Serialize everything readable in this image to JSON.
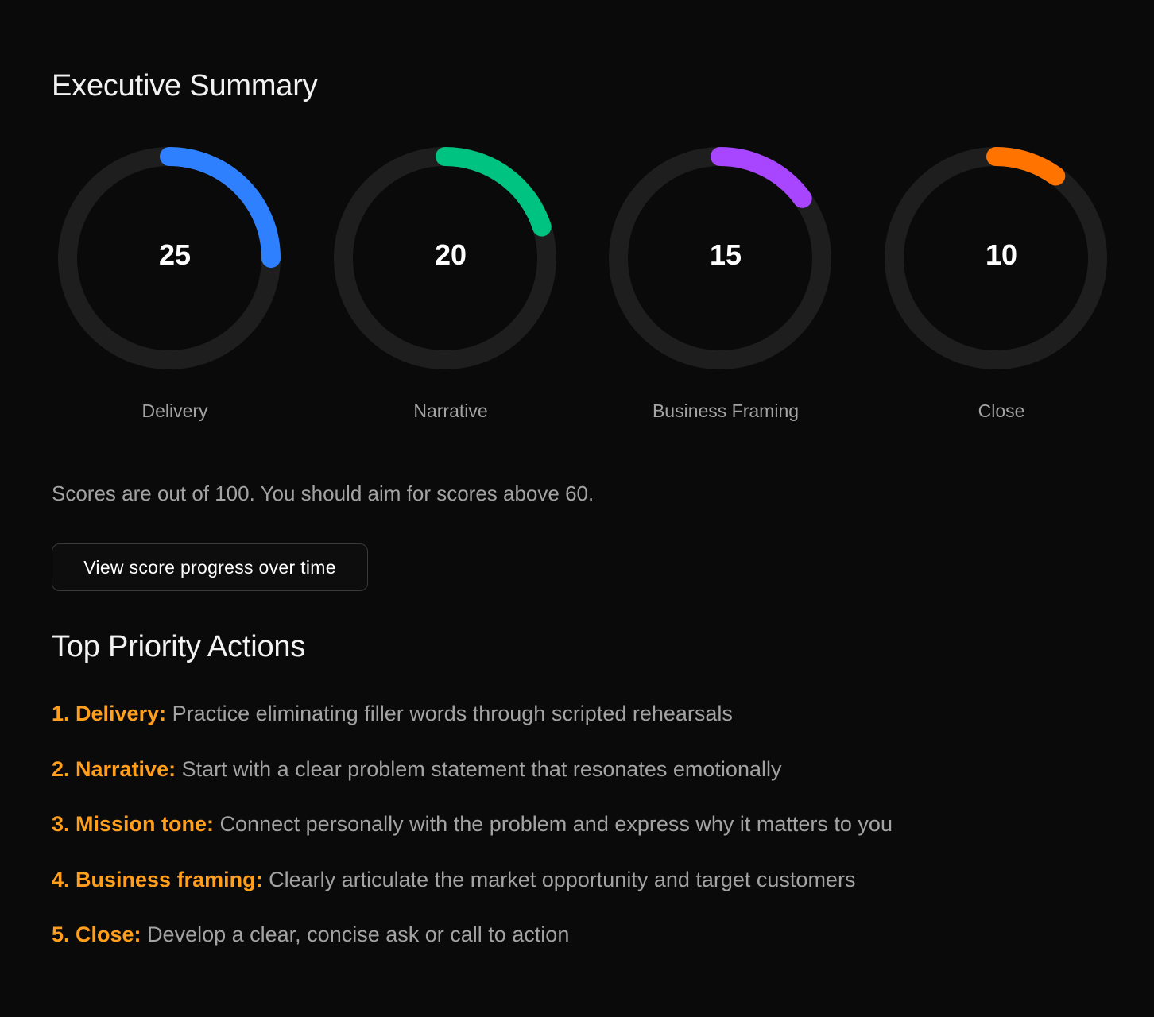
{
  "executive_summary": {
    "title": "Executive Summary"
  },
  "scores": [
    {
      "label": "Delivery",
      "value": 25,
      "display": "25",
      "color": "#2f80ff"
    },
    {
      "label": "Narrative",
      "value": 20,
      "display": "20",
      "color": "#00c281"
    },
    {
      "label": "Business Framing",
      "value": 15,
      "display": "15",
      "color": "#a845ff"
    },
    {
      "label": "Close",
      "value": 10,
      "display": "10",
      "color": "#ff7300"
    }
  ],
  "score_scale": {
    "max": 100
  },
  "note": "Scores are out of 100. You should aim for scores above 60.",
  "progress_button": {
    "label": "View score progress over time"
  },
  "top_priority_actions": {
    "title": "Top Priority Actions",
    "items": [
      {
        "key": "1. Delivery:",
        "text": "Practice eliminating filler words through scripted rehearsals"
      },
      {
        "key": "2. Narrative:",
        "text": "Start with a clear problem statement that resonates emotionally"
      },
      {
        "key": "3. Mission tone:",
        "text": "Connect personally with the problem and express why it matters to you"
      },
      {
        "key": "4. Business framing:",
        "text": "Clearly articulate the market opportunity and target customers"
      },
      {
        "key": "5. Close:",
        "text": "Develop a clear, concise ask or call to action"
      }
    ]
  },
  "colors": {
    "background": "#0a0a0a",
    "track": "#1e1e1e",
    "accent_orange": "#ff9f1c",
    "muted_text": "#a3a3a3"
  }
}
